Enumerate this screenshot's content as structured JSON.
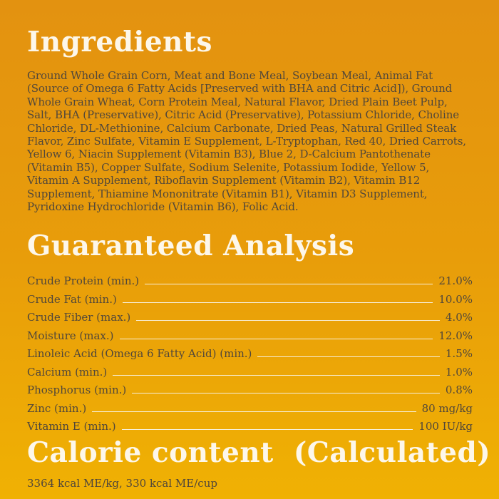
{
  "theme": {
    "background_top": "#E39210",
    "background_bottom": "#F0B103",
    "heading_color": "#FDF7EA",
    "body_text_color": "#51473A",
    "leader_line_color": "#F7EFD9"
  },
  "ingredients": {
    "title": "Ingredients",
    "text": "Ground Whole Grain Corn, Meat and Bone Meal, Soybean Meal, Animal Fat (Source of Omega 6 Fatty Acids [Preserved with BHA and Citric Acid]), Ground Whole Grain Wheat, Corn Protein Meal, Natural Flavor, Dried Plain Beet Pulp, Salt, BHA (Preservative), Citric Acid (Preservative), Potassium Chloride, Choline Chloride, DL-Methionine, Calcium Carbonate, Dried Peas, Natural Grilled Steak Flavor, Zinc Sulfate, Vitamin E Supplement, L-Tryptophan, Red 40, Dried Carrots, Yellow 6, Niacin Supplement (Vitamin B3), Blue 2, D-Calcium Pantothenate (Vitamin B5), Copper Sulfate, Sodium Selenite, Potassium Iodide, Yellow 5, Vitamin A Supplement, Riboflavin Supplement (Vitamin B2), Vitamin B12 Supplement, Thiamine Mononitrate (Vitamin B1), Vitamin D3 Supplement, Pyridoxine Hydrochloride (Vitamin B6), Folic Acid."
  },
  "guaranteed_analysis": {
    "title": "Guaranteed Analysis",
    "rows": [
      {
        "label": "Crude Protein (min.)",
        "value": "21.0%"
      },
      {
        "label": "Crude Fat (min.)",
        "value": "10.0%"
      },
      {
        "label": "Crude Fiber (max.)",
        "value": "4.0%"
      },
      {
        "label": "Moisture (max.)",
        "value": "12.0%"
      },
      {
        "label": "Linoleic Acid (Omega 6 Fatty Acid) (min.)",
        "value": "1.5%"
      },
      {
        "label": "Calcium (min.)",
        "value": "1.0%"
      },
      {
        "label": "Phosphorus (min.)",
        "value": "0.8%"
      },
      {
        "label": "Zinc (min.)",
        "value": "80 mg/kg"
      },
      {
        "label": "Vitamin E (min.)",
        "value": "100 IU/kg"
      }
    ]
  },
  "calorie_content": {
    "title": "Calorie content  (Calculated)",
    "text": "3364 kcal ME/kg, 330 kcal ME/cup"
  }
}
